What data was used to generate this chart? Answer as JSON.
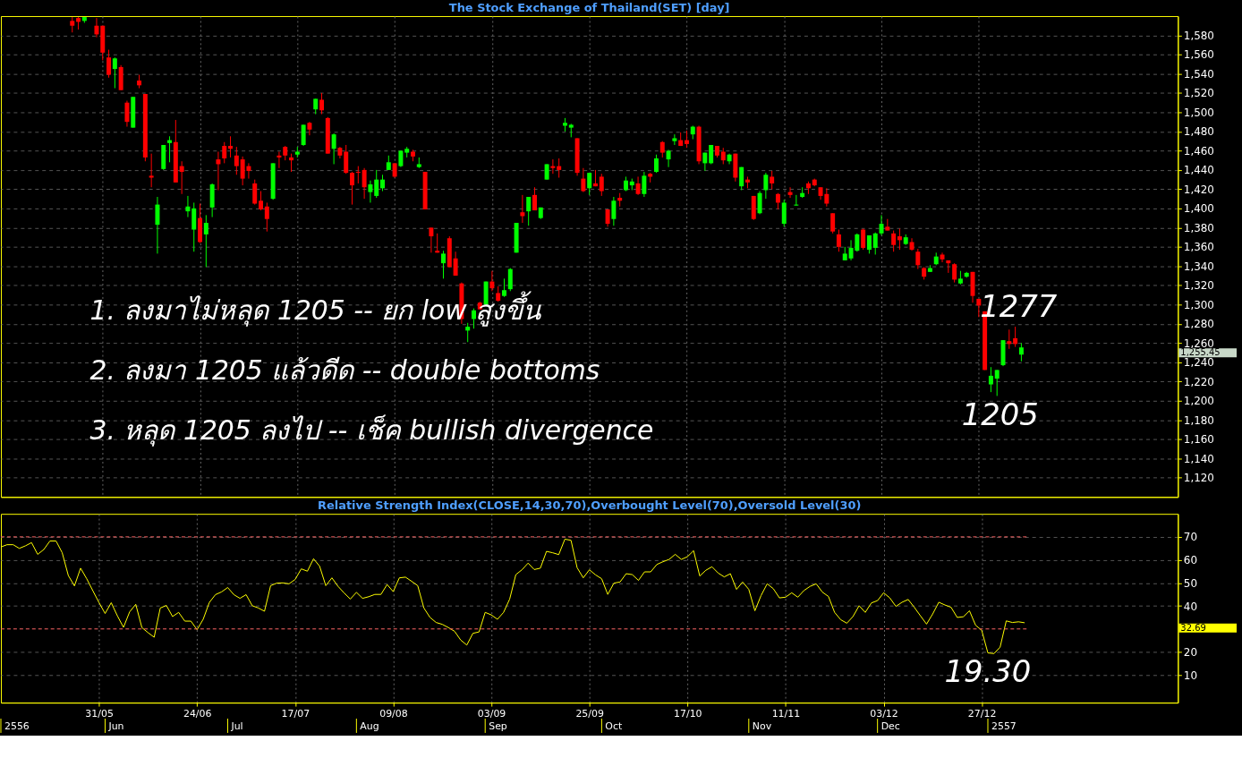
{
  "chart_data": [
    {
      "type": "candlestick",
      "title": "The Stock Exchange of Thailand(SET) [day]",
      "categories": [
        null,
        null,
        null,
        null,
        null,
        null,
        null,
        null,
        null,
        null,
        null,
        null,
        null,
        null,
        null,
        null,
        null,
        null,
        null,
        null,
        null,
        null,
        null,
        null,
        null,
        null,
        null,
        null,
        null,
        null,
        null,
        null,
        null,
        null,
        null,
        null,
        null,
        null,
        null,
        null,
        null,
        null,
        null,
        null,
        null,
        null,
        null,
        null,
        null,
        null,
        null,
        null,
        null,
        null,
        null,
        null,
        null,
        null,
        null,
        null,
        null,
        null,
        null,
        null,
        null,
        null,
        null,
        null,
        null,
        null,
        null,
        null,
        null,
        null,
        null,
        null,
        null,
        null,
        null,
        null,
        null,
        null,
        null,
        null,
        null,
        null,
        null,
        null,
        null,
        null,
        null,
        null,
        null,
        null,
        null,
        null,
        null,
        null,
        null,
        null,
        null,
        null,
        null,
        null,
        null,
        null,
        null,
        null,
        null,
        null,
        null,
        null,
        null,
        null,
        null,
        null,
        null,
        null,
        null,
        null,
        null,
        null,
        null,
        null,
        null,
        null,
        null,
        null,
        null,
        null,
        null,
        null,
        null,
        null,
        null,
        null,
        null,
        null,
        null,
        null,
        null,
        null,
        null,
        null,
        null,
        null,
        null,
        null,
        null,
        null,
        null,
        null,
        null,
        null,
        null,
        null,
        null,
        null,
        null,
        null,
        null,
        null,
        null,
        null,
        null,
        null,
        null,
        null,
        null,
        null,
        null,
        null,
        null,
        null,
        null,
        null,
        null,
        null,
        null,
        null,
        null,
        null,
        null,
        null,
        null,
        null,
        null,
        null,
        null,
        null,
        null,
        null,
        null
      ],
      "ohlc": [
        null,
        null,
        null,
        null,
        null,
        null,
        null,
        null,
        null,
        null,
        null,
        [
          1595,
          1599,
          1583,
          1590
        ],
        [
          1598,
          1599,
          1586,
          1594
        ],
        [
          1595,
          1599,
          1593,
          1599
        ],
        null,
        [
          1590,
          1598,
          1578,
          1581
        ],
        [
          1590,
          1590,
          1554,
          1562
        ],
        [
          1557,
          1565,
          1536,
          1539
        ],
        [
          1545,
          1557,
          1525,
          1556
        ],
        [
          1547,
          1549,
          1523,
          1523
        ],
        [
          1510,
          1512,
          1485,
          1490
        ],
        [
          1484,
          1516,
          1484,
          1516
        ],
        [
          1533,
          1539,
          1525,
          1528
        ],
        [
          1519,
          1519,
          1449,
          1453
        ],
        [
          1434,
          1457,
          1422,
          1432
        ],
        [
          1383,
          1412,
          1353,
          1404
        ],
        [
          1441,
          1466,
          1440,
          1466
        ],
        [
          1468,
          1475,
          1448,
          1471
        ],
        [
          1469,
          1492,
          1427,
          1427
        ],
        [
          1444,
          1449,
          1415,
          1438
        ],
        [
          1397,
          1413,
          1391,
          1402
        ],
        [
          1378,
          1406,
          1355,
          1400
        ],
        [
          1390,
          1405,
          1364,
          1365
        ],
        [
          1373,
          1393,
          1339,
          1385
        ],
        [
          1401,
          1426,
          1391,
          1425
        ],
        [
          1451,
          1459,
          1419,
          1446
        ],
        [
          1465,
          1469,
          1447,
          1452
        ],
        [
          1465,
          1475,
          1453,
          1462
        ],
        [
          1455,
          1464,
          1435,
          1444
        ],
        [
          1451,
          1454,
          1424,
          1431
        ],
        [
          1444,
          1447,
          1431,
          1439
        ],
        [
          1426,
          1430,
          1404,
          1405
        ],
        [
          1408,
          1418,
          1398,
          1399
        ],
        [
          1402,
          1406,
          1376,
          1389
        ],
        [
          1410,
          1447,
          1409,
          1447
        ],
        [
          1455,
          1459,
          1442,
          1453
        ],
        [
          1464,
          1465,
          1450,
          1455
        ],
        [
          1453,
          1457,
          1438,
          1450
        ],
        [
          1456,
          1464,
          1453,
          1459
        ],
        [
          1466,
          1487,
          1465,
          1487
        ],
        [
          1489,
          1490,
          1476,
          1482
        ],
        [
          1503,
          1514,
          1498,
          1514
        ],
        [
          1513,
          1520,
          1498,
          1502
        ],
        [
          1494,
          1495,
          1457,
          1457
        ],
        [
          1462,
          1478,
          1446,
          1477
        ],
        [
          1463,
          1464,
          1452,
          1455
        ],
        [
          1459,
          1466,
          1436,
          1437
        ],
        [
          1437,
          1438,
          1404,
          1424
        ],
        [
          1438,
          1444,
          1426,
          1437
        ],
        [
          1440,
          1442,
          1410,
          1422
        ],
        [
          1417,
          1429,
          1406,
          1425
        ],
        [
          1413,
          1440,
          1411,
          1430
        ],
        [
          1421,
          1435,
          1418,
          1430
        ],
        [
          1440,
          1455,
          1440,
          1448
        ],
        [
          1447,
          1447,
          1432,
          1433
        ],
        [
          1444,
          1460,
          1443,
          1460
        ],
        [
          1458,
          1464,
          1453,
          1462
        ],
        [
          1459,
          1461,
          1449,
          1454
        ],
        [
          1443,
          1453,
          1442,
          1446
        ],
        [
          1438,
          1438,
          1399,
          1399
        ],
        [
          1380,
          1380,
          1354,
          1371
        ],
        [
          1356,
          1374,
          1354,
          1354
        ],
        [
          1343,
          1356,
          1327,
          1353
        ],
        [
          1369,
          1371,
          1339,
          1339
        ],
        [
          1348,
          1355,
          1330,
          1330
        ],
        [
          1322,
          1323,
          1280,
          1285
        ],
        [
          1273,
          1281,
          1261,
          1277
        ],
        [
          1285,
          1296,
          1275,
          1294
        ],
        [
          1302,
          1303,
          1295,
          1295
        ],
        [
          1300,
          1324,
          1299,
          1324
        ],
        [
          1324,
          1335,
          1314,
          1317
        ],
        [
          1312,
          1319,
          1303,
          1304
        ],
        [
          1309,
          1327,
          1308,
          1315
        ],
        [
          1316,
          1338,
          1314,
          1337
        ],
        [
          1354,
          1385,
          1354,
          1385
        ],
        [
          1396,
          1414,
          1385,
          1392
        ],
        [
          1397,
          1412,
          1382,
          1412
        ],
        [
          1414,
          1422,
          1398,
          1398
        ],
        [
          1390,
          1401,
          1389,
          1401
        ],
        [
          1430,
          1446,
          1430,
          1446
        ],
        [
          1444,
          1451,
          1436,
          1442
        ],
        [
          1444,
          1452,
          1432,
          1440
        ],
        [
          1486,
          1494,
          1480,
          1489
        ],
        [
          1484,
          1488,
          1474,
          1487
        ],
        [
          1473,
          1473,
          1434,
          1437
        ],
        [
          1431,
          1442,
          1417,
          1418
        ],
        [
          1421,
          1437,
          1414,
          1437
        ],
        [
          1426,
          1440,
          1423,
          1423
        ],
        [
          1433,
          1436,
          1413,
          1418
        ],
        [
          1399,
          1399,
          1381,
          1384
        ],
        [
          1389,
          1412,
          1382,
          1408
        ],
        [
          1411,
          1416,
          1402,
          1408
        ],
        [
          1419,
          1433,
          1418,
          1429
        ],
        [
          1424,
          1431,
          1419,
          1428
        ],
        [
          1426,
          1433,
          1414,
          1415
        ],
        [
          1415,
          1438,
          1412,
          1434
        ],
        [
          1436,
          1437,
          1427,
          1433
        ],
        [
          1438,
          1456,
          1437,
          1452
        ],
        [
          1469,
          1470,
          1453,
          1458
        ],
        [
          1451,
          1461,
          1443,
          1460
        ],
        [
          1470,
          1477,
          1466,
          1473
        ],
        [
          1471,
          1479,
          1465,
          1465
        ],
        [
          1471,
          1481,
          1463,
          1467
        ],
        [
          1477,
          1486,
          1472,
          1485
        ],
        [
          1485,
          1486,
          1446,
          1449
        ],
        [
          1447,
          1458,
          1439,
          1458
        ],
        [
          1447,
          1466,
          1446,
          1466
        ],
        [
          1465,
          1465,
          1453,
          1455
        ],
        [
          1459,
          1463,
          1446,
          1450
        ],
        [
          1449,
          1457,
          1446,
          1456
        ],
        [
          1457,
          1457,
          1428,
          1432
        ],
        [
          1423,
          1443,
          1419,
          1443
        ],
        [
          1430,
          1433,
          1421,
          1427
        ],
        [
          1413,
          1413,
          1388,
          1389
        ],
        [
          1395,
          1418,
          1394,
          1416
        ],
        [
          1419,
          1437,
          1410,
          1435
        ],
        [
          1433,
          1439,
          1420,
          1426
        ],
        [
          1415,
          1416,
          1399,
          1406
        ],
        [
          1384,
          1409,
          1381,
          1406
        ],
        [
          1417,
          1422,
          1411,
          1414
        ],
        [
          1403,
          1414,
          1403,
          1404
        ],
        [
          1412,
          1422,
          1411,
          1416
        ],
        [
          1426,
          1428,
          1415,
          1421
        ],
        [
          1430,
          1431,
          1423,
          1424
        ],
        [
          1422,
          1422,
          1409,
          1413
        ],
        [
          1415,
          1421,
          1402,
          1405
        ],
        [
          1395,
          1395,
          1374,
          1376
        ],
        [
          1373,
          1378,
          1355,
          1360
        ],
        [
          1346,
          1360,
          1346,
          1353
        ],
        [
          1348,
          1367,
          1346,
          1359
        ],
        [
          1356,
          1374,
          1355,
          1373
        ],
        [
          1378,
          1379,
          1357,
          1359
        ],
        [
          1357,
          1372,
          1353,
          1372
        ],
        [
          1359,
          1375,
          1352,
          1374
        ],
        [
          1374,
          1393,
          1372,
          1384
        ],
        [
          1381,
          1389,
          1377,
          1377
        ],
        [
          1374,
          1377,
          1355,
          1362
        ],
        [
          1371,
          1379,
          1357,
          1367
        ],
        [
          1363,
          1373,
          1362,
          1370
        ],
        [
          1365,
          1369,
          1356,
          1357
        ],
        [
          1355,
          1358,
          1337,
          1341
        ],
        [
          1338,
          1339,
          1326,
          1329
        ],
        [
          1334,
          1341,
          1334,
          1338
        ],
        [
          1342,
          1354,
          1341,
          1350
        ],
        [
          1352,
          1354,
          1344,
          1347
        ],
        [
          1346,
          1346,
          1333,
          1343
        ],
        [
          1342,
          1343,
          1323,
          1326
        ],
        [
          1322,
          1335,
          1321,
          1327
        ],
        [
          1329,
          1334,
          1328,
          1333
        ],
        [
          1334,
          1334,
          1302,
          1309
        ],
        [
          1306,
          1306,
          1287,
          1299
        ],
        [
          1293,
          1293,
          1232,
          1232
        ],
        [
          1217,
          1235,
          1209,
          1226
        ],
        [
          1223,
          1232,
          1205,
          1232
        ],
        [
          1237,
          1263,
          1236,
          1263
        ],
        [
          1262,
          1274,
          1254,
          1259
        ],
        [
          1265,
          1277,
          1256,
          1259
        ],
        [
          1248,
          1260,
          1241,
          1255.45
        ],
        null,
        null,
        null,
        null,
        null,
        null,
        null,
        null,
        null,
        null,
        null,
        null,
        null,
        null,
        null,
        null,
        null,
        null,
        null,
        null,
        null,
        null,
        null,
        null,
        null
      ],
      "colors": [
        null,
        null,
        null,
        null,
        null,
        null,
        null,
        null,
        null,
        null,
        null,
        "#ff0000",
        "#ff0000",
        "#00ff00",
        null,
        "#ff0000",
        "#ff0000",
        "#ff0000",
        "#00ff00",
        "#ff0000",
        "#ff0000",
        "#00ff00",
        "#ff0000",
        "#ff0000",
        "#ff0000",
        "#00ff00",
        "#00ff00",
        "#00ff00",
        "#ff0000",
        "#ff0000",
        "#00ff00",
        "#00ff00",
        "#ff0000",
        "#00ff00",
        "#00ff00",
        "#ff0000",
        "#ff0000",
        "#ff0000",
        "#ff0000",
        "#ff0000",
        "#ff0000",
        "#ff0000",
        "#ff0000",
        "#ff0000",
        "#00ff00",
        "#ff0000",
        "#ff0000",
        "#ff0000",
        "#00ff00",
        "#00ff00",
        "#ff0000",
        "#00ff00",
        "#ff0000",
        "#ff0000",
        "#00ff00",
        "#ff0000",
        "#ff0000",
        "#ff0000",
        "#ff0000",
        "#ff0000",
        "#00ff00",
        "#00ff00",
        "#00ff00",
        "#00ff00",
        "#ff0000",
        "#00ff00",
        "#00ff00",
        "#ff0000",
        "#00ff00",
        "#ff0000",
        "#ff0000",
        "#ff0000",
        "#00ff00",
        "#ff0000",
        "#ff0000",
        "#ff0000",
        "#00ff00",
        "#00ff00",
        "#ff0000",
        "#00ff00",
        "#ff0000",
        "#ff0000",
        "#00ff00",
        "#00ff00",
        "#00ff00",
        "#ff0000",
        "#00ff00",
        "#ff0000",
        "#00ff00",
        "#00ff00",
        "#ff0000",
        "#ff0000",
        "#00ff00",
        "#00ff00",
        "#ff0000",
        "#ff0000",
        "#00ff00",
        "#ff0000",
        "#ff0000",
        "#ff0000",
        "#00ff00",
        "#ff0000",
        "#00ff00",
        "#00ff00",
        "#ff0000",
        "#00ff00",
        "#ff0000",
        "#00ff00",
        "#ff0000",
        "#00ff00",
        "#00ff00",
        "#ff0000",
        "#ff0000",
        "#00ff00",
        "#ff0000",
        "#00ff00",
        "#00ff00",
        "#ff0000",
        "#ff0000",
        "#00ff00",
        "#ff0000",
        "#00ff00",
        "#ff0000",
        "#ff0000",
        "#00ff00",
        "#00ff00",
        "#ff0000",
        "#ff0000",
        "#00ff00",
        "#ff0000",
        "#00ff00",
        "#00ff00",
        "#ff0000",
        "#ff0000",
        "#ff0000",
        "#ff0000",
        "#ff0000",
        "#ff0000",
        "#00ff00",
        "#00ff00",
        "#00ff00",
        "#ff0000",
        "#00ff00",
        "#00ff00",
        "#00ff00",
        "#ff0000",
        "#ff0000",
        "#ff0000",
        "#00ff00",
        "#ff0000",
        "#ff0000",
        "#ff0000",
        "#00ff00",
        "#00ff00",
        "#ff0000",
        "#ff0000",
        "#ff0000",
        "#00ff00",
        "#00ff00",
        "#ff0000",
        "#ff0000",
        "#ff0000",
        "#00ff00",
        "#00ff00",
        "#00ff00",
        "#ff0000",
        "#ff0000",
        "#00ff00",
        null,
        null,
        null,
        null,
        null,
        null,
        null,
        null,
        null,
        null,
        null,
        null,
        null,
        null,
        null,
        null,
        null,
        null,
        null,
        null,
        null,
        null,
        null,
        null,
        null
      ],
      "ylim": [
        1100,
        1600
      ],
      "yticks": [
        {
          "value": 1120,
          "label": "1,120"
        },
        {
          "value": 1140,
          "label": "1,140"
        },
        {
          "value": 1160,
          "label": "1,160"
        },
        {
          "value": 1180,
          "label": "1,180"
        },
        {
          "value": 1200,
          "label": "1,200"
        },
        {
          "value": 1220,
          "label": "1,220"
        },
        {
          "value": 1240,
          "label": "1,240"
        },
        {
          "value": 1260,
          "label": "1,260"
        },
        {
          "value": 1280,
          "label": "1,280"
        },
        {
          "value": 1300,
          "label": "1,300"
        },
        {
          "value": 1320,
          "label": "1,320"
        },
        {
          "value": 1340,
          "label": "1,340"
        },
        {
          "value": 1360,
          "label": "1,360"
        },
        {
          "value": 1380,
          "label": "1,380"
        },
        {
          "value": 1400,
          "label": "1,400"
        },
        {
          "value": 1420,
          "label": "1,420"
        },
        {
          "value": 1440,
          "label": "1,440"
        },
        {
          "value": 1460,
          "label": "1,460"
        },
        {
          "value": 1480,
          "label": "1,480"
        },
        {
          "value": 1500,
          "label": "1,500"
        },
        {
          "value": 1520,
          "label": "1,520"
        },
        {
          "value": 1540,
          "label": "1,540"
        },
        {
          "value": 1560,
          "label": "1,560"
        },
        {
          "value": 1580,
          "label": "1,580"
        }
      ],
      "grid": true,
      "annotations": [
        "1. ลงมาไม่หลุด 1205 -- ยก low สูงขึ้น",
        "2. ลงมา 1205 แล้วดีด -- double bottoms",
        "3. หลุด 1205 ลงไป -- เช็ค bullish divergence",
        "1277",
        "1205",
        "1,255.45"
      ]
    },
    {
      "type": "line",
      "title": "Relative Strength Index(CLOSE,14,30,70),Overbought Level(70),Oversold Level(30)",
      "categories": [
        null,
        null,
        null,
        null,
        null,
        null,
        null,
        null,
        null,
        null,
        null,
        null,
        null,
        null,
        null,
        null,
        "31/05",
        null,
        null,
        null,
        null,
        null,
        null,
        null,
        null,
        null,
        null,
        null,
        null,
        null,
        null,
        null,
        "24/06",
        null,
        null,
        null,
        null,
        null,
        null,
        null,
        null,
        null,
        null,
        null,
        null,
        null,
        null,
        null,
        "17/07",
        null,
        null,
        null,
        null,
        null,
        null,
        null,
        null,
        null,
        null,
        null,
        null,
        null,
        null,
        null,
        "09/08",
        null,
        null,
        null,
        null,
        null,
        null,
        null,
        null,
        null,
        null,
        null,
        null,
        null,
        null,
        null,
        "03/09",
        null,
        null,
        null,
        null,
        null,
        null,
        null,
        null,
        null,
        null,
        null,
        null,
        null,
        null,
        null,
        "25/09",
        null,
        null,
        null,
        null,
        null,
        null,
        null,
        null,
        null,
        null,
        null,
        null,
        null,
        null,
        null,
        "17/10",
        null,
        null,
        null,
        null,
        null,
        null,
        null,
        null,
        null,
        null,
        null,
        null,
        null,
        null,
        null,
        "11/11",
        null,
        null,
        null,
        null,
        null,
        null,
        null,
        null,
        null,
        null,
        null,
        null,
        null,
        null,
        null,
        "03/12",
        null,
        null,
        null,
        null,
        null,
        null,
        null,
        null,
        null,
        null,
        null,
        null,
        null,
        null,
        null,
        "27/12",
        null,
        null,
        null,
        null,
        null,
        null,
        null,
        null,
        null,
        null,
        null,
        null,
        null,
        null,
        null,
        null,
        null,
        null,
        null,
        null,
        null,
        null,
        null,
        null,
        null,
        null,
        null,
        null,
        null,
        null,
        null,
        null
      ],
      "series": [
        {
          "color": "#ffff00",
          "values": [
            65.6,
            66.6,
            66.6,
            65.0,
            66.1,
            67.5,
            62.4,
            64.5,
            68.2,
            68.2,
            63.1,
            53.2,
            48.7,
            56.4,
            51.8,
            46.6,
            41.5,
            36.7,
            41.4,
            35.7,
            30.7,
            37.4,
            40.7,
            30.6,
            28.4,
            26.4,
            39.1,
            40.2,
            35.4,
            37.2,
            33.4,
            33.4,
            29.7,
            34.2,
            41.5,
            44.9,
            46.1,
            48.0,
            44.9,
            43.3,
            44.9,
            40.1,
            39.1,
            37.7,
            48.8,
            49.9,
            50.0,
            49.6,
            51.5,
            56.1,
            55.1,
            60.5,
            57.2,
            48.8,
            52.2,
            48.5,
            45.6,
            43.0,
            45.9,
            43.3,
            44.0,
            45.0,
            45.0,
            49.3,
            46.2,
            52.2,
            52.5,
            50.7,
            48.8,
            39.1,
            35.0,
            32.8,
            32.0,
            30.6,
            29.0,
            25.2,
            23.0,
            28.1,
            28.7,
            37.2,
            36.1,
            34.2,
            37.2,
            43.0,
            53.6,
            55.7,
            58.6,
            55.8,
            56.4,
            63.7,
            63.1,
            62.3,
            69.0,
            68.5,
            56.6,
            52.2,
            55.7,
            53.5,
            51.8,
            45.0,
            49.9,
            50.4,
            54.0,
            53.6,
            51.1,
            54.8,
            54.8,
            58.0,
            59.2,
            60.2,
            62.4,
            60.2,
            61.4,
            64.0,
            53.0,
            55.5,
            57.0,
            54.3,
            52.6,
            54.0,
            47.2,
            50.4,
            47.2,
            37.9,
            44.5,
            49.6,
            47.5,
            43.5,
            43.8,
            45.7,
            43.8,
            46.7,
            48.5,
            49.6,
            46.0,
            44.1,
            37.2,
            34.0,
            32.5,
            35.4,
            40.1,
            37.2,
            41.3,
            42.3,
            45.7,
            43.5,
            39.8,
            41.6,
            42.8,
            39.4,
            35.7,
            32.1,
            36.5,
            41.6,
            40.4,
            39.4,
            35.0,
            35.3,
            37.9,
            31.6,
            29.4,
            19.6,
            19.3,
            22.1,
            33.5,
            32.8,
            33.1,
            32.69,
            null,
            null,
            null,
            null,
            null,
            null,
            null,
            null,
            null,
            null,
            null,
            null,
            null,
            null,
            null,
            null,
            null,
            null,
            null,
            null,
            null,
            null,
            null,
            null,
            null
          ]
        }
      ],
      "ylim": [
        -2,
        80
      ],
      "yticks": [
        10,
        20,
        40,
        50,
        60,
        70
      ],
      "ref_lines": [
        {
          "axis": "y",
          "value": 70,
          "color": "#ff6666",
          "line_style": "dashed"
        },
        {
          "axis": "y",
          "value": 30,
          "color": "#ff6666",
          "line_style": "dashed"
        }
      ],
      "grid": true,
      "annotations": [
        "19.30",
        "32.69",
        "2556",
        "Jun",
        "Jul",
        "Aug",
        "Sep",
        "Oct",
        "Nov",
        "Dec",
        "2557"
      ]
    }
  ]
}
